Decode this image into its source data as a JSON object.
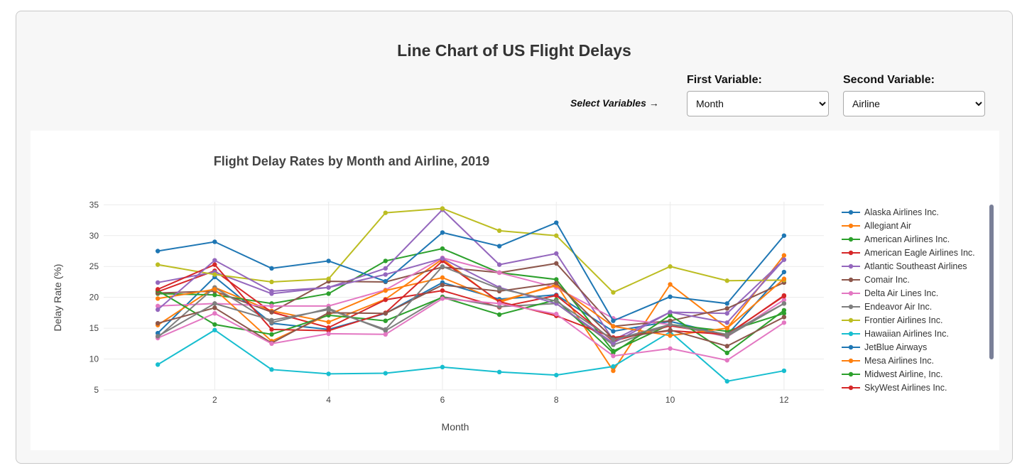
{
  "header": {
    "title": "Line Chart of US Flight Delays"
  },
  "controls": {
    "hint": "Select Variables →",
    "first": {
      "label": "First Variable:",
      "value": "Month",
      "options": [
        "Month"
      ]
    },
    "second": {
      "label": "Second Variable:",
      "value": "Airline",
      "options": [
        "Airline"
      ]
    }
  },
  "chart_data": {
    "type": "line",
    "title": "Flight Delay Rates by Month and Airline, 2019",
    "xlabel": "Month",
    "ylabel": "Delay Rate (%)",
    "xlim": [
      0.05,
      12.7
    ],
    "ylim": [
      5,
      35.5
    ],
    "xticks": [
      2,
      4,
      6,
      8,
      10,
      12
    ],
    "yticks": [
      5,
      10,
      15,
      20,
      25,
      30,
      35
    ],
    "grid": true,
    "legend_position": "right",
    "x": [
      1,
      2,
      3,
      4,
      5,
      6,
      7,
      8,
      9,
      10,
      11,
      12
    ],
    "series": [
      {
        "name": "Alaska Airlines Inc.",
        "color": "#1f77b4",
        "values": [
          14.2,
          23.3,
          15.8,
          14.8,
          17.4,
          22.4,
          19.7,
          20.4,
          14.5,
          16.1,
          13.9,
          24.1
        ]
      },
      {
        "name": "Allegiant Air",
        "color": "#ff7f0e",
        "values": [
          15.5,
          21.6,
          17.8,
          16.0,
          19.7,
          26.2,
          19.2,
          22.1,
          8.1,
          22.1,
          15.0,
          26.8
        ]
      },
      {
        "name": "American Airlines Inc.",
        "color": "#2ca02c",
        "values": [
          20.6,
          20.4,
          19.0,
          20.6,
          25.9,
          27.9,
          24.0,
          22.9,
          11.3,
          15.6,
          14.5,
          17.4
        ]
      },
      {
        "name": "American Eagle Airlines Inc.",
        "color": "#d62728",
        "values": [
          20.9,
          24.3,
          17.6,
          15.1,
          19.6,
          21.1,
          18.4,
          20.3,
          12.9,
          15.4,
          13.9,
          20.3
        ]
      },
      {
        "name": "Atlantic Southeast Airlines",
        "color": "#9467bd",
        "values": [
          22.4,
          24.1,
          20.6,
          21.6,
          24.7,
          34.2,
          25.3,
          27.1,
          13.1,
          17.6,
          17.4,
          26.1
        ]
      },
      {
        "name": "Comair Inc.",
        "color": "#8c564b",
        "values": [
          20.7,
          21.0,
          17.6,
          22.6,
          22.5,
          24.9,
          24.0,
          25.5,
          15.3,
          16.2,
          18.2,
          22.4
        ]
      },
      {
        "name": "Delta Air Lines Inc.",
        "color": "#e377c2",
        "values": [
          18.6,
          19.0,
          18.6,
          18.6,
          21.2,
          26.4,
          24.0,
          21.6,
          16.6,
          15.6,
          13.6,
          19.6
        ]
      },
      {
        "name": "Endeavor Air Inc.",
        "color": "#7f7f7f",
        "values": [
          13.5,
          21.6,
          15.9,
          18.2,
          14.6,
          20.1,
          18.5,
          19.0,
          12.3,
          15.6,
          13.7,
          19.0
        ]
      },
      {
        "name": "Frontier Airlines Inc.",
        "color": "#bcbd22",
        "values": [
          25.3,
          23.7,
          22.5,
          23.0,
          33.7,
          34.4,
          30.8,
          30.0,
          20.8,
          25.0,
          22.7,
          22.8
        ]
      },
      {
        "name": "Hawaiian Airlines Inc.",
        "color": "#17becf",
        "values": [
          9.1,
          14.7,
          8.3,
          7.6,
          7.7,
          8.7,
          7.9,
          7.4,
          8.8,
          14.4,
          6.4,
          8.1
        ]
      },
      {
        "name": "JetBlue Airways",
        "color": "#1f77b4",
        "values": [
          27.5,
          29.0,
          24.7,
          25.9,
          22.6,
          30.5,
          28.3,
          32.1,
          16.2,
          20.1,
          19.0,
          30.0
        ]
      },
      {
        "name": "Mesa Airlines Inc.",
        "color": "#ff7f0e",
        "values": [
          19.8,
          21.3,
          12.9,
          17.2,
          21.1,
          23.2,
          19.4,
          21.9,
          15.3,
          13.8,
          15.0,
          23.0
        ]
      },
      {
        "name": "Midwest Airline, Inc.",
        "color": "#2ca02c",
        "values": [
          21.1,
          15.6,
          14.0,
          17.1,
          16.2,
          20.0,
          17.2,
          19.6,
          11.0,
          17.1,
          11.0,
          17.9
        ]
      },
      {
        "name": "SkyWest Airlines Inc.",
        "color": "#d62728",
        "values": [
          21.3,
          25.3,
          14.8,
          14.6,
          17.5,
          25.9,
          19.3,
          17.0,
          13.5,
          14.6,
          14.0,
          20.2
        ]
      },
      {
        "name": "Atlantic Southeast Airlines",
        "color": "#9467bd",
        "values": [
          18.0,
          26.0,
          21.0,
          21.6,
          23.7,
          26.3,
          21.6,
          19.0,
          12.6,
          17.6,
          15.9,
          26.1
        ]
      },
      {
        "name": "Comair Inc.",
        "color": "#8c564b",
        "values": [
          15.8,
          18.3,
          12.6,
          17.5,
          17.4,
          22.0,
          21.0,
          22.3,
          13.3,
          14.7,
          12.1,
          16.8
        ]
      },
      {
        "name": "Delta Air Lines Inc.",
        "color": "#e377c2",
        "values": [
          13.4,
          17.4,
          12.5,
          14.1,
          14.0,
          19.8,
          19.0,
          17.3,
          10.5,
          11.7,
          9.8,
          15.9
        ]
      },
      {
        "name": "Endeavor Air Inc.",
        "color": "#7f7f7f",
        "values": [
          13.7,
          19.0,
          16.3,
          18.0,
          14.8,
          25.0,
          21.4,
          19.4,
          13.1,
          15.6,
          14.0,
          19.0
        ]
      }
    ],
    "legend_visible": 14
  }
}
